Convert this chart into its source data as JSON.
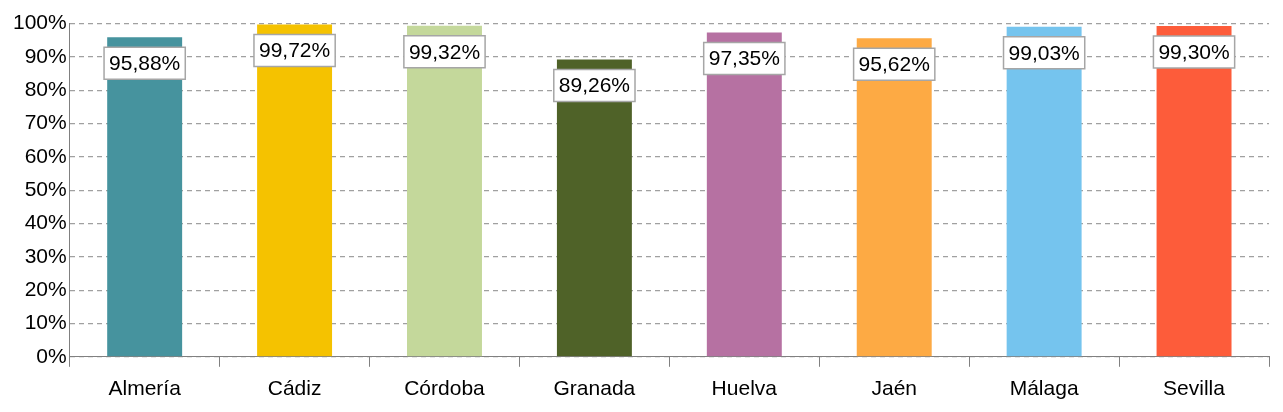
{
  "chart_data": {
    "type": "bar",
    "categories": [
      "Almería",
      "Cádiz",
      "Córdoba",
      "Granada",
      "Huelva",
      "Jaén",
      "Málaga",
      "Sevilla"
    ],
    "values": [
      95.88,
      99.72,
      99.32,
      89.26,
      97.35,
      95.62,
      99.03,
      99.3
    ],
    "colors": [
      "#46939e",
      "#f5c200",
      "#c4d89b",
      "#4f6228",
      "#b671a2",
      "#fdaa44",
      "#75c4ee",
      "#fd5c3a"
    ],
    "value_labels": [
      "95,88%",
      "99,72%",
      "99,32%",
      "89,26%",
      "97,35%",
      "95,62%",
      "99,03%",
      "99,30%"
    ],
    "ylim": [
      0,
      100
    ],
    "yticks": [
      {
        "value": 0,
        "label": "0%"
      },
      {
        "value": 10,
        "label": "10%"
      },
      {
        "value": 20,
        "label": "20%"
      },
      {
        "value": 30,
        "label": "30%"
      },
      {
        "value": 40,
        "label": "40%"
      },
      {
        "value": 50,
        "label": "50%"
      },
      {
        "value": 60,
        "label": "60%"
      },
      {
        "value": 70,
        "label": "70%"
      },
      {
        "value": 80,
        "label": "80%"
      },
      {
        "value": 90,
        "label": "90%"
      },
      {
        "value": 100,
        "label": "100%"
      }
    ],
    "grid": "y",
    "legend": false
  }
}
